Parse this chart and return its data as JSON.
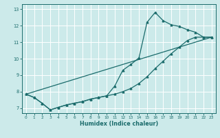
{
  "background_color": "#cceaea",
  "grid_color": "#ffffff",
  "line_color": "#1a6b6b",
  "xlabel": "Humidex (Indice chaleur)",
  "xlim": [
    -0.5,
    23.5
  ],
  "ylim": [
    6.7,
    13.3
  ],
  "yticks": [
    7,
    8,
    9,
    10,
    11,
    12,
    13
  ],
  "xticks": [
    0,
    1,
    2,
    3,
    4,
    5,
    6,
    7,
    8,
    9,
    10,
    11,
    12,
    13,
    14,
    15,
    16,
    17,
    18,
    19,
    20,
    21,
    22,
    23
  ],
  "line1_x": [
    0,
    1,
    2,
    3,
    4,
    5,
    6,
    7,
    8,
    9,
    10,
    11,
    12,
    13,
    14,
    15,
    16,
    17,
    18,
    19,
    20,
    21,
    22,
    23
  ],
  "line1_y": [
    7.85,
    7.65,
    7.3,
    6.9,
    7.05,
    7.2,
    7.3,
    7.4,
    7.55,
    7.65,
    7.75,
    7.85,
    8.0,
    8.2,
    8.5,
    8.9,
    9.4,
    9.85,
    10.3,
    10.7,
    11.1,
    11.3,
    11.3,
    11.3
  ],
  "line2_x": [
    0,
    1,
    2,
    3,
    4,
    5,
    6,
    7,
    8,
    9,
    10,
    11,
    12,
    13,
    14,
    15,
    16,
    17,
    18,
    19,
    20,
    21,
    22,
    23
  ],
  "line2_y": [
    7.85,
    7.65,
    7.3,
    6.9,
    7.05,
    7.2,
    7.3,
    7.4,
    7.55,
    7.65,
    7.75,
    8.35,
    9.3,
    9.65,
    10.05,
    12.2,
    12.8,
    12.3,
    12.05,
    11.95,
    11.75,
    11.6,
    11.3,
    11.3
  ],
  "line3_x": [
    0,
    23
  ],
  "line3_y": [
    7.85,
    11.3
  ]
}
